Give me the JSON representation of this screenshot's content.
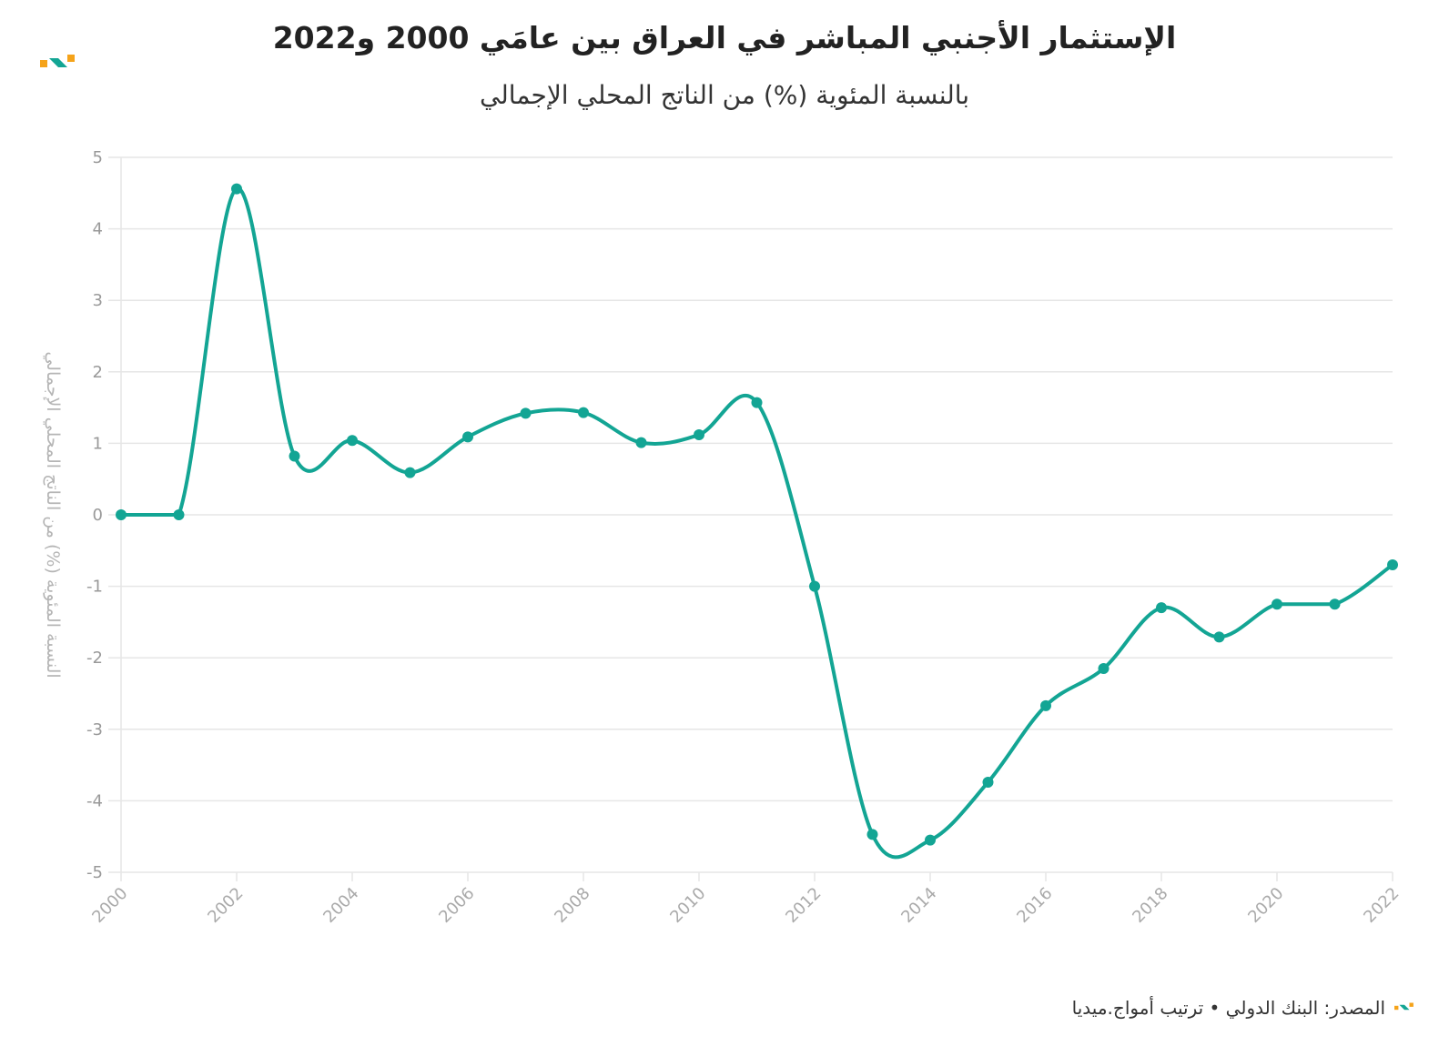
{
  "header": {
    "title": "الإستثمار الأجنبي المباشر في العراق بين عامَي 2000 و2022",
    "subtitle": "بالنسبة المئوية (%) من الناتج المحلي الإجمالي"
  },
  "footer": {
    "source": "المصدر: البنك الدولي • ترتيب أمواج.ميديا"
  },
  "colors": {
    "line": "#13a594",
    "grid": "#e6e6e6",
    "logo_teal": "#13a594",
    "logo_orange": "#f5a31a"
  },
  "icons": {
    "brand": "amwaj-logo-icon"
  },
  "chart_data": {
    "type": "line",
    "title": "الإستثمار الأجنبي المباشر في العراق بين عامَي 2000 و2022",
    "subtitle": "بالنسبة المئوية (%) من الناتج المحلي الإجمالي",
    "xlabel": "",
    "ylabel": "النسبة المئوية (%) من الناتج المحلي الإجمالي",
    "x": [
      2000,
      2001,
      2002,
      2003,
      2004,
      2005,
      2006,
      2007,
      2008,
      2009,
      2010,
      2011,
      2012,
      2013,
      2014,
      2015,
      2016,
      2017,
      2018,
      2019,
      2020,
      2021,
      2022
    ],
    "values": [
      0,
      0,
      4.56,
      0.82,
      1.04,
      0.59,
      1.09,
      1.42,
      1.43,
      1.01,
      1.12,
      1.57,
      -1.0,
      -4.47,
      -4.55,
      -3.74,
      -2.67,
      -2.15,
      -1.3,
      -1.71,
      -1.25,
      -1.25,
      -0.7
    ],
    "xticks": [
      "2000",
      "2002",
      "2004",
      "2006",
      "2008",
      "2010",
      "2012",
      "2014",
      "2016",
      "2018",
      "2020",
      "2022"
    ],
    "yticks": [
      "-5",
      "-4",
      "-3",
      "-2",
      "-1",
      "0",
      "1",
      "2",
      "3",
      "4",
      "5"
    ],
    "xlim": [
      2000,
      2022
    ],
    "ylim": [
      -5,
      5
    ],
    "grid": true,
    "legend": "none"
  }
}
